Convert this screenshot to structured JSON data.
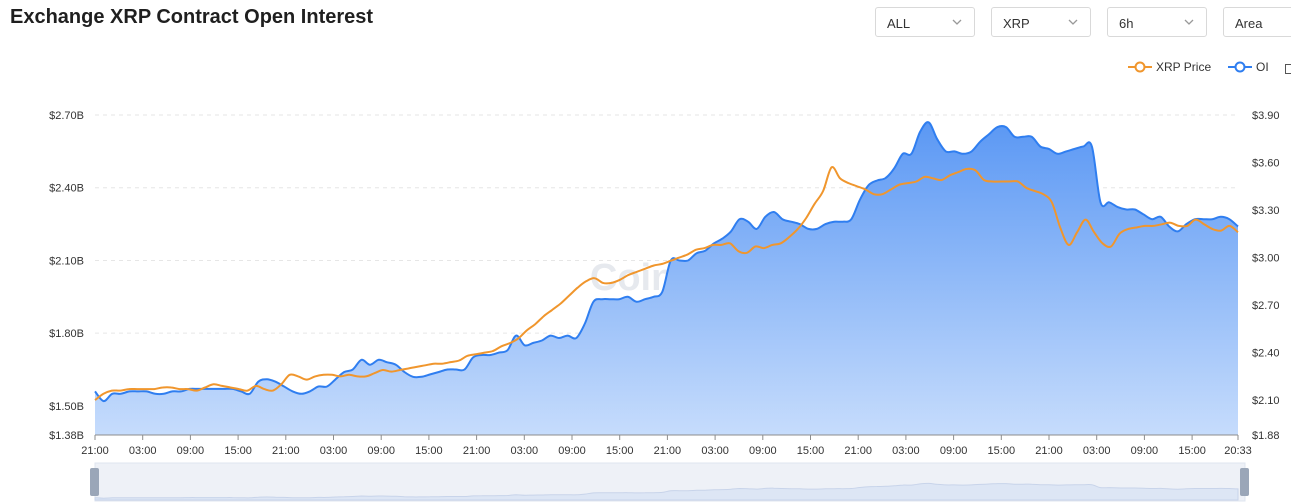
{
  "header": {
    "title": "Exchange XRP Contract Open Interest"
  },
  "controls": {
    "exchange": "ALL",
    "symbol": "XRP",
    "interval": "6h",
    "chart_style": "Area"
  },
  "watermark": "CoinAnk",
  "colors": {
    "oi": "#2f7ef0",
    "price": "#f0962d",
    "area_top": "#5f9cf5",
    "area_bottom": "#c4dbfc"
  },
  "chart_data": {
    "type": "area",
    "legend": [
      "XRP Price",
      "OI"
    ],
    "legend_position": "top-right",
    "grid": true,
    "x_tick_labels": [
      "21:00",
      "03:00",
      "09:00",
      "15:00",
      "21:00",
      "03:00",
      "09:00",
      "15:00",
      "21:00",
      "03:00",
      "09:00",
      "15:00",
      "21:00",
      "03:00",
      "09:00",
      "15:00",
      "21:00",
      "03:00",
      "09:00",
      "15:00",
      "21:00",
      "03:00",
      "09:00",
      "15:00",
      "20:33"
    ],
    "y_left": {
      "ticks": [
        "$1.38B",
        "$1.50B",
        "$1.80B",
        "$2.10B",
        "$2.40B",
        "$2.70B"
      ],
      "tick_values": [
        1.38,
        1.5,
        1.8,
        2.1,
        2.4,
        2.7
      ],
      "range": [
        1.38,
        2.7
      ],
      "unit": "B USD"
    },
    "y_right": {
      "ticks": [
        "$1.88",
        "$2.10",
        "$2.40",
        "$2.70",
        "$3.00",
        "$3.30",
        "$3.60",
        "$3.90"
      ],
      "tick_values": [
        1.88,
        2.1,
        2.4,
        2.7,
        3.0,
        3.3,
        3.6,
        3.9
      ],
      "range": [
        1.88,
        3.9
      ]
    },
    "series": [
      {
        "name": "OI",
        "axis": "left",
        "values": [
          1.56,
          1.52,
          1.55,
          1.55,
          1.56,
          1.56,
          1.56,
          1.55,
          1.55,
          1.56,
          1.56,
          1.57,
          1.57,
          1.57,
          1.57,
          1.57,
          1.57,
          1.56,
          1.55,
          1.6,
          1.61,
          1.6,
          1.58,
          1.56,
          1.55,
          1.56,
          1.58,
          1.58,
          1.61,
          1.64,
          1.65,
          1.69,
          1.67,
          1.69,
          1.68,
          1.67,
          1.64,
          1.62,
          1.62,
          1.63,
          1.64,
          1.65,
          1.65,
          1.65,
          1.7,
          1.71,
          1.71,
          1.72,
          1.73,
          1.79,
          1.75,
          1.76,
          1.77,
          1.79,
          1.78,
          1.79,
          1.78,
          1.84,
          1.93,
          1.94,
          1.94,
          1.94,
          1.95,
          1.93,
          1.94,
          1.95,
          1.97,
          2.1,
          2.1,
          2.1,
          2.13,
          2.14,
          2.17,
          2.19,
          2.22,
          2.27,
          2.26,
          2.23,
          2.28,
          2.3,
          2.27,
          2.26,
          2.25,
          2.23,
          2.23,
          2.25,
          2.26,
          2.26,
          2.27,
          2.35,
          2.41,
          2.43,
          2.44,
          2.48,
          2.54,
          2.54,
          2.63,
          2.67,
          2.6,
          2.55,
          2.55,
          2.54,
          2.55,
          2.59,
          2.62,
          2.65,
          2.65,
          2.61,
          2.61,
          2.61,
          2.57,
          2.56,
          2.54,
          2.55,
          2.56,
          2.57,
          2.57,
          2.34,
          2.34,
          2.32,
          2.31,
          2.31,
          2.29,
          2.27,
          2.28,
          2.24,
          2.22,
          2.25,
          2.27,
          2.27,
          2.27,
          2.28,
          2.27,
          2.24
        ]
      },
      {
        "name": "XRP Price",
        "axis": "right",
        "values": [
          2.1,
          2.14,
          2.16,
          2.16,
          2.17,
          2.17,
          2.17,
          2.17,
          2.18,
          2.18,
          2.17,
          2.17,
          2.16,
          2.18,
          2.2,
          2.19,
          2.18,
          2.17,
          2.16,
          2.19,
          2.17,
          2.16,
          2.2,
          2.26,
          2.25,
          2.23,
          2.25,
          2.26,
          2.26,
          2.25,
          2.26,
          2.25,
          2.25,
          2.27,
          2.29,
          2.28,
          2.29,
          2.3,
          2.31,
          2.32,
          2.33,
          2.33,
          2.34,
          2.35,
          2.38,
          2.39,
          2.4,
          2.41,
          2.44,
          2.46,
          2.49,
          2.54,
          2.58,
          2.63,
          2.67,
          2.71,
          2.76,
          2.81,
          2.85,
          2.87,
          2.84,
          2.84,
          2.86,
          2.89,
          2.91,
          2.93,
          2.95,
          2.96,
          2.98,
          3.0,
          3.02,
          3.05,
          3.06,
          3.08,
          3.08,
          3.09,
          3.04,
          3.03,
          3.07,
          3.06,
          3.08,
          3.09,
          3.13,
          3.18,
          3.25,
          3.34,
          3.42,
          3.57,
          3.5,
          3.47,
          3.45,
          3.43,
          3.4,
          3.4,
          3.43,
          3.46,
          3.47,
          3.48,
          3.51,
          3.5,
          3.49,
          3.52,
          3.54,
          3.56,
          3.55,
          3.49,
          3.48,
          3.48,
          3.48,
          3.48,
          3.44,
          3.42,
          3.4,
          3.35,
          3.19,
          3.08,
          3.16,
          3.24,
          3.16,
          3.09,
          3.07,
          3.15,
          3.18,
          3.19,
          3.2,
          3.2,
          3.21,
          3.22,
          3.2,
          3.2,
          3.24,
          3.21,
          3.18,
          3.17,
          3.2,
          3.16
        ]
      }
    ]
  }
}
